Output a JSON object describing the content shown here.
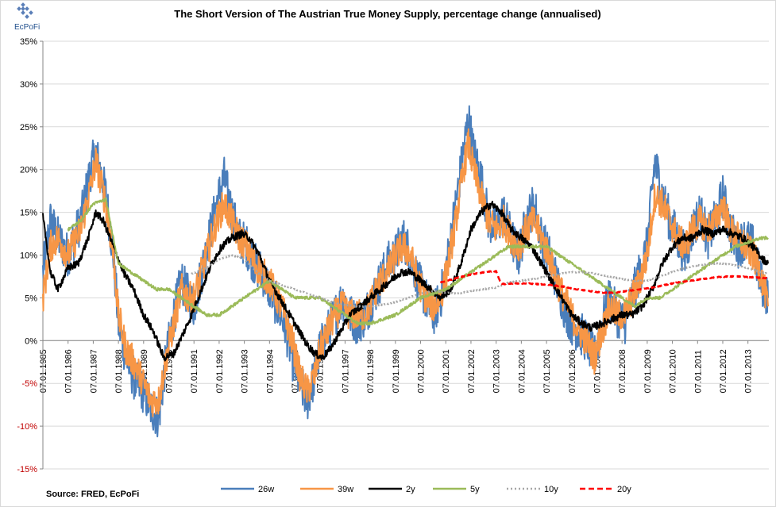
{
  "logo": {
    "text": "EcPoFi"
  },
  "source": "Source: FRED,  EcPoFi",
  "chart_data": {
    "type": "line",
    "title": "The Short Version of The Austrian True Money Supply, percentage change (annualised)",
    "xlabel": "",
    "ylabel": "",
    "ylim": [
      -15,
      35
    ],
    "yticks": [
      35,
      30,
      25,
      20,
      15,
      10,
      5,
      0,
      -5,
      -10,
      -15
    ],
    "ytick_labels": [
      "35%",
      "30%",
      "25%",
      "20%",
      "15%",
      "10%",
      "5%",
      "0%",
      "-5%",
      "-10%",
      "-15%"
    ],
    "xlim": [
      1985.0,
      2013.83
    ],
    "x_tick_labels": [
      "07.01.1985",
      "07.01.1986",
      "07.01.1987",
      "07.01.1988",
      "07.01.1989",
      "07.01.1990",
      "07.01.1991",
      "07.01.1992",
      "07.01.1993",
      "07.01.1994",
      "07.01.1995",
      "07.01.1996",
      "07.01.1997",
      "07.01.1998",
      "07.01.1999",
      "07.01.2000",
      "07.01.2001",
      "07.01.2002",
      "07.01.2003",
      "07.01.2004",
      "07.01.2005",
      "07.01.2006",
      "07.01.2007",
      "07.01.2008",
      "07.01.2009",
      "07.01.2010",
      "07.01.2011",
      "07.01.2012",
      "07.01.2013"
    ],
    "x_tick_values": [
      1985.0,
      1986.0,
      1987.0,
      1988.0,
      1989.0,
      1990.0,
      1991.0,
      1992.0,
      1993.0,
      1994.0,
      1995.0,
      1996.0,
      1997.0,
      1998.0,
      1999.0,
      2000.0,
      2001.0,
      2002.0,
      2003.0,
      2004.0,
      2005.0,
      2006.0,
      2007.0,
      2008.0,
      2009.0,
      2010.0,
      2011.0,
      2012.0,
      2013.0
    ],
    "legend_position": "bottom",
    "series": [
      {
        "name": "26w",
        "color": "#4a7ebb",
        "style": "solid",
        "width": 2.0,
        "noise": 2.6,
        "x": [
          1985.0,
          1985.3,
          1985.6,
          1986.0,
          1986.5,
          1986.9,
          1987.1,
          1987.5,
          1987.8,
          1988.0,
          1988.3,
          1988.7,
          1989.0,
          1989.3,
          1989.6,
          1989.9,
          1990.2,
          1990.5,
          1990.8,
          1991.0,
          1991.3,
          1991.6,
          1991.9,
          1992.2,
          1992.5,
          1992.8,
          1993.1,
          1993.4,
          1993.7,
          1994.0,
          1994.3,
          1994.6,
          1994.9,
          1995.2,
          1995.5,
          1995.8,
          1996.0,
          1996.3,
          1996.6,
          1996.9,
          1997.2,
          1997.5,
          1997.8,
          1998.1,
          1998.4,
          1998.7,
          1999.0,
          1999.3,
          1999.6,
          1999.9,
          2000.2,
          2000.5,
          2000.8,
          2001.1,
          2001.4,
          2001.7,
          2001.9,
          2002.1,
          2002.4,
          2002.7,
          2003.0,
          2003.3,
          2003.6,
          2003.9,
          2004.2,
          2004.5,
          2004.8,
          2005.1,
          2005.4,
          2005.7,
          2006.0,
          2006.3,
          2006.6,
          2006.9,
          2007.2,
          2007.5,
          2007.8,
          2008.1,
          2008.4,
          2008.7,
          2009.0,
          2009.3,
          2009.6,
          2009.9,
          2010.2,
          2010.5,
          2010.8,
          2011.1,
          2011.4,
          2011.7,
          2012.0,
          2012.3,
          2012.6,
          2012.9,
          2013.2,
          2013.5,
          2013.8
        ],
        "y": [
          8,
          14,
          12,
          10,
          14,
          20,
          22,
          17,
          10,
          2,
          -2,
          -5,
          -6,
          -8,
          -9,
          -2,
          3,
          7,
          5,
          4,
          8,
          12,
          16,
          19,
          15,
          12,
          11,
          9,
          8,
          6,
          4,
          2,
          -2,
          -5,
          -7,
          -4,
          -1,
          1,
          3,
          5,
          3,
          2,
          3,
          5,
          7,
          9,
          10,
          12,
          10,
          7,
          5,
          3,
          5,
          10,
          16,
          22,
          26,
          22,
          19,
          14,
          13,
          15,
          12,
          10,
          14,
          16,
          12,
          10,
          7,
          4,
          2,
          1,
          0,
          -2,
          2,
          5,
          3,
          2,
          5,
          8,
          11,
          21,
          17,
          14,
          12,
          10,
          13,
          15,
          12,
          14,
          17,
          13,
          11,
          12,
          11,
          7,
          5
        ]
      },
      {
        "name": "39w",
        "color": "#f79646",
        "style": "solid",
        "width": 2.0,
        "noise": 1.9,
        "x": [
          1985.0,
          1985.3,
          1985.6,
          1986.0,
          1986.5,
          1986.9,
          1987.1,
          1987.5,
          1987.8,
          1988.0,
          1988.3,
          1988.7,
          1989.0,
          1989.3,
          1989.6,
          1989.9,
          1990.2,
          1990.5,
          1990.8,
          1991.0,
          1991.3,
          1991.6,
          1991.9,
          1992.2,
          1992.5,
          1992.8,
          1993.1,
          1993.4,
          1993.7,
          1994.0,
          1994.3,
          1994.6,
          1994.9,
          1995.2,
          1995.5,
          1995.8,
          1996.0,
          1996.3,
          1996.6,
          1996.9,
          1997.2,
          1997.5,
          1997.8,
          1998.1,
          1998.4,
          1998.7,
          1999.0,
          1999.3,
          1999.6,
          1999.9,
          2000.2,
          2000.5,
          2000.8,
          2001.1,
          2001.4,
          2001.7,
          2001.9,
          2002.1,
          2002.4,
          2002.7,
          2003.0,
          2003.3,
          2003.6,
          2003.9,
          2004.2,
          2004.5,
          2004.8,
          2005.1,
          2005.4,
          2005.7,
          2006.0,
          2006.3,
          2006.6,
          2006.9,
          2007.2,
          2007.5,
          2007.8,
          2008.1,
          2008.4,
          2008.7,
          2009.0,
          2009.3,
          2009.6,
          2009.9,
          2010.2,
          2010.5,
          2010.8,
          2011.1,
          2011.4,
          2011.7,
          2012.0,
          2012.3,
          2012.6,
          2012.9,
          2013.2,
          2013.5,
          2013.8
        ],
        "y": [
          5,
          11,
          12,
          10,
          13,
          18,
          21,
          16,
          10,
          3,
          -1,
          -3,
          -5,
          -7,
          -7,
          -2,
          2,
          6,
          5,
          5,
          8,
          11,
          14,
          16,
          14,
          12,
          11,
          9,
          8,
          7,
          5,
          3,
          0,
          -4,
          -6,
          -4,
          -1,
          1,
          3,
          4,
          3,
          3,
          3,
          5,
          7,
          8,
          10,
          11,
          10,
          7,
          5,
          4,
          5,
          9,
          14,
          20,
          23,
          20,
          17,
          14,
          13,
          14,
          12,
          11,
          13,
          14,
          12,
          10,
          7,
          5,
          3,
          1,
          0,
          -2,
          1,
          4,
          3,
          3,
          5,
          7,
          10,
          17,
          16,
          14,
          12,
          11,
          13,
          14,
          13,
          14,
          16,
          13,
          12,
          11,
          10,
          8,
          4
        ]
      },
      {
        "name": "2y",
        "color": "#000000",
        "style": "solid",
        "width": 2.0,
        "noise": 0.45,
        "x": [
          1985.0,
          1985.3,
          1985.6,
          1986.0,
          1986.4,
          1986.8,
          1987.1,
          1987.4,
          1987.8,
          1988.2,
          1988.6,
          1989.0,
          1989.4,
          1989.8,
          1990.2,
          1990.6,
          1990.9,
          1991.3,
          1991.7,
          1992.1,
          1992.5,
          1992.9,
          1993.2,
          1993.6,
          1994.0,
          1994.4,
          1994.8,
          1995.2,
          1995.5,
          1995.8,
          1996.1,
          1996.4,
          1996.8,
          1997.2,
          1997.6,
          1998.0,
          1998.4,
          1998.8,
          1999.2,
          1999.6,
          2000.0,
          2000.4,
          2000.8,
          2001.2,
          2001.6,
          2002.0,
          2002.4,
          2002.8,
          2003.2,
          2003.6,
          2004.0,
          2004.4,
          2004.8,
          2005.2,
          2005.6,
          2006.0,
          2006.4,
          2006.8,
          2007.2,
          2007.6,
          2008.0,
          2008.4,
          2008.8,
          2009.2,
          2009.6,
          2010.0,
          2010.4,
          2010.8,
          2011.2,
          2011.6,
          2012.0,
          2012.4,
          2012.8,
          2013.2,
          2013.6,
          2013.8
        ],
        "y": [
          14.5,
          8,
          6,
          8.5,
          9,
          12,
          15,
          14,
          11,
          8,
          6,
          3,
          1,
          -2,
          -1.5,
          1,
          3,
          6,
          9,
          11,
          12,
          12.5,
          12,
          10,
          7,
          5,
          3,
          1,
          -0.5,
          -1.5,
          -2,
          -1,
          1,
          3,
          4,
          5,
          6,
          7,
          8,
          8,
          7,
          6,
          5,
          6,
          9,
          13,
          15,
          16,
          15,
          13,
          12,
          11,
          9,
          7,
          5,
          3,
          2,
          1.5,
          2,
          2.5,
          3,
          3,
          4,
          6,
          9,
          11,
          12,
          12,
          13,
          12.5,
          13,
          12.5,
          12,
          11,
          9.5,
          9
        ]
      },
      {
        "name": "5y",
        "color": "#9bbb59",
        "style": "solid",
        "width": 2.0,
        "noise": 0.18,
        "x": [
          1986.0,
          1986.5,
          1987.0,
          1987.5,
          1988.0,
          1988.5,
          1989.0,
          1989.5,
          1990.0,
          1990.5,
          1991.0,
          1991.5,
          1992.0,
          1992.5,
          1993.0,
          1993.5,
          1994.0,
          1994.5,
          1995.0,
          1995.5,
          1996.0,
          1996.5,
          1997.0,
          1997.5,
          1998.0,
          1998.5,
          1999.0,
          1999.5,
          2000.0,
          2000.5,
          2001.0,
          2001.5,
          2002.0,
          2002.5,
          2003.0,
          2003.5,
          2004.0,
          2004.5,
          2005.0,
          2005.5,
          2006.0,
          2006.5,
          2007.0,
          2007.5,
          2008.0,
          2008.5,
          2009.0,
          2009.5,
          2010.0,
          2010.5,
          2011.0,
          2011.5,
          2012.0,
          2012.5,
          2013.0,
          2013.5,
          2013.8
        ],
        "y": [
          13,
          14,
          16,
          16.5,
          9,
          8,
          7,
          6,
          6,
          5,
          4,
          3,
          3,
          4,
          5,
          6,
          7,
          6,
          5,
          5,
          5,
          4,
          3,
          2,
          2,
          2.5,
          3,
          4,
          5,
          5.5,
          6,
          7,
          8,
          9,
          10,
          11,
          11,
          11,
          11,
          10,
          9,
          8,
          7,
          6,
          5,
          4,
          5,
          5,
          6,
          7,
          8,
          9,
          10,
          11,
          11.5,
          12,
          12
        ]
      },
      {
        "name": "10y",
        "color": "#a6a6a6",
        "style": "dot",
        "width": 2.5,
        "noise": 0.05,
        "x": [
          1990.9,
          1991.5,
          1992.0,
          1992.5,
          1993.0,
          1993.5,
          1994.0,
          1994.5,
          1995.0,
          1995.5,
          1996.0,
          1996.5,
          1997.0,
          1997.5,
          1998.0,
          1998.5,
          1999.0,
          1999.5,
          2000.0,
          2000.5,
          2001.0,
          2001.5,
          2002.0,
          2002.5,
          2003.0,
          2003.5,
          2004.0,
          2004.5,
          2005.0,
          2005.5,
          2006.0,
          2006.5,
          2007.0,
          2007.5,
          2008.0,
          2008.5,
          2009.0,
          2009.5,
          2010.0,
          2010.5,
          2011.0,
          2011.5,
          2012.0,
          2012.5,
          2013.0,
          2013.5,
          2013.8
        ],
        "y": [
          7.8,
          8.5,
          9.5,
          10,
          9.5,
          8,
          7,
          6.5,
          6,
          5.5,
          5,
          4.5,
          4.2,
          4,
          4,
          4.2,
          4.5,
          5,
          5.5,
          5.8,
          5.6,
          5.5,
          5.8,
          6,
          6.2,
          6.8,
          7,
          7.2,
          7.5,
          7.8,
          8,
          8,
          7.8,
          7.5,
          7.2,
          7,
          7,
          7.5,
          8,
          8.5,
          8.8,
          9,
          9,
          8.8,
          8.5,
          8,
          7.8
        ]
      },
      {
        "name": "20y",
        "color": "#ff0000",
        "style": "dash",
        "width": 2.5,
        "noise": 0.05,
        "x": [
          2000.8,
          2001.3,
          2001.8,
          2002.3,
          2002.8,
          2003.0,
          2003.2,
          2003.7,
          2004.2,
          2004.7,
          2005.2,
          2005.7,
          2006.2,
          2006.7,
          2007.2,
          2007.7,
          2008.2,
          2008.7,
          2009.2,
          2009.7,
          2010.2,
          2010.7,
          2011.2,
          2011.7,
          2012.2,
          2012.7,
          2013.2,
          2013.8
        ],
        "y": [
          6.8,
          7.2,
          7.6,
          7.9,
          8.1,
          8.1,
          6.6,
          6.7,
          6.7,
          6.6,
          6.5,
          6.3,
          6.0,
          5.8,
          5.6,
          5.6,
          5.8,
          6.0,
          6.2,
          6.5,
          6.8,
          7.0,
          7.2,
          7.4,
          7.5,
          7.5,
          7.4,
          7.3
        ]
      }
    ]
  }
}
